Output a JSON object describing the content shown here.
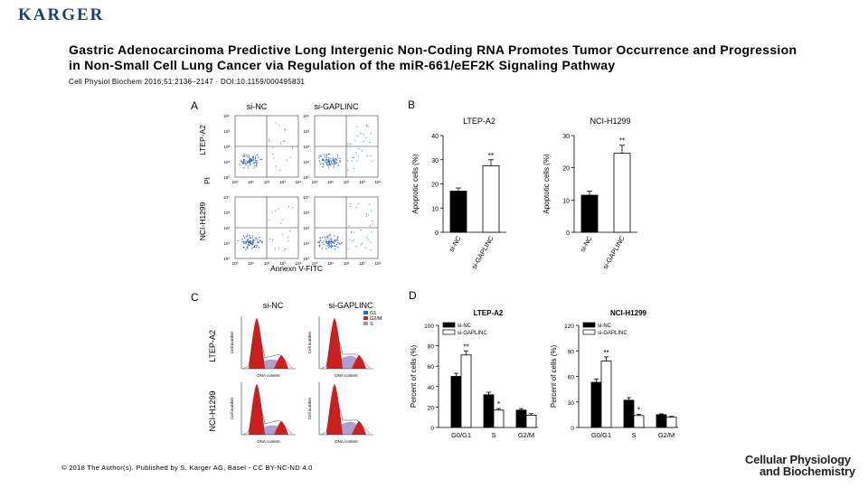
{
  "header": {
    "logo_text": "KARGER"
  },
  "slide": {
    "title": "Gastric Adenocarcinoma Predictive Long Intergenic Non-Coding RNA Promotes Tumor Occurrence and Progression in Non-Small Cell Lung Cancer via Regulation of the miR-661/eEF2K Signaling Pathway",
    "citation": "Cell Physiol Biochem 2016;51:2136–2147 · DOI:10.1159/000495831",
    "copyright": "© 2018 The Author(s). Published by S. Karger AG, Basel - CC BY-NC-ND 4.0",
    "journal_line1": "Cellular Physiology",
    "journal_line2": "and Biochemistry"
  },
  "panelA": {
    "label": "A",
    "col_labels": [
      "si-NC",
      "si-GAPLINC"
    ],
    "row_labels": [
      "LTEP-A2",
      "NCI-H1299"
    ],
    "y_axis": "PI",
    "x_axis": "Annexn V-FITC",
    "ticks": [
      "10⁰",
      "10¹",
      "10²",
      "10³",
      "10⁴"
    ]
  },
  "panelC": {
    "label": "C",
    "col_labels": [
      "si-NC",
      "si-GAPLINC"
    ],
    "row_labels": [
      "LTEP-A2",
      "NCI-H1299"
    ],
    "legend": [
      "G1",
      "G2/M",
      "S"
    ],
    "x_axis": "DNA content",
    "y_axis": "Cell number",
    "colors": {
      "G1": "#cc1f1f",
      "G2M": "#d11f1f",
      "S": "#9c8fc8"
    }
  },
  "chart_data": [
    {
      "panel": "B",
      "type": "bar",
      "title": "LTEP-A2",
      "ylabel": "Apoptotic cells (%)",
      "categories": [
        "si-NC",
        "si-GAPLINC"
      ],
      "values": [
        17,
        27.5
      ],
      "errors": [
        1.3,
        2.5
      ],
      "significance": [
        "",
        "**"
      ],
      "ylim": [
        0,
        40
      ],
      "yticks": [
        0,
        10,
        20,
        30,
        40
      ]
    },
    {
      "panel": "B",
      "type": "bar",
      "title": "NCI-H1299",
      "ylabel": "Apoptotic cells (%)",
      "categories": [
        "si-NC",
        "si-GAPLINC"
      ],
      "values": [
        11.5,
        24.5
      ],
      "errors": [
        1.2,
        2.5
      ],
      "significance": [
        "",
        "**"
      ],
      "ylim": [
        0,
        30
      ],
      "yticks": [
        0,
        10,
        20,
        30
      ]
    },
    {
      "panel": "D",
      "type": "bar",
      "title": "LTEP-A2",
      "ylabel": "Percent of cells (%)",
      "categories": [
        "G0/G1",
        "S",
        "G2/M"
      ],
      "series": [
        {
          "name": "si-NC",
          "values": [
            50,
            32,
            17
          ],
          "errors": [
            3,
            2.5,
            1.5
          ]
        },
        {
          "name": "si-GAPLINC",
          "values": [
            71,
            17,
            12
          ],
          "errors": [
            4,
            1.5,
            1.5
          ]
        }
      ],
      "significance": [
        "**",
        "*",
        ""
      ],
      "ylim": [
        0,
        100
      ],
      "yticks": [
        0,
        20,
        40,
        60,
        80,
        100
      ]
    },
    {
      "panel": "D",
      "type": "bar",
      "title": "NCI-H1299",
      "ylabel": "Percent of cells (%)",
      "categories": [
        "G0/G1",
        "S",
        "G2/M"
      ],
      "series": [
        {
          "name": "si-NC",
          "values": [
            53,
            32,
            15
          ],
          "errors": [
            4,
            3,
            1
          ]
        },
        {
          "name": "si-GAPLINC",
          "values": [
            78,
            14,
            12
          ],
          "errors": [
            5,
            1.5,
            1
          ]
        }
      ],
      "significance": [
        "**",
        "*",
        ""
      ],
      "ylim": [
        0,
        120
      ],
      "yticks": [
        0,
        30,
        60,
        90,
        120
      ]
    }
  ]
}
